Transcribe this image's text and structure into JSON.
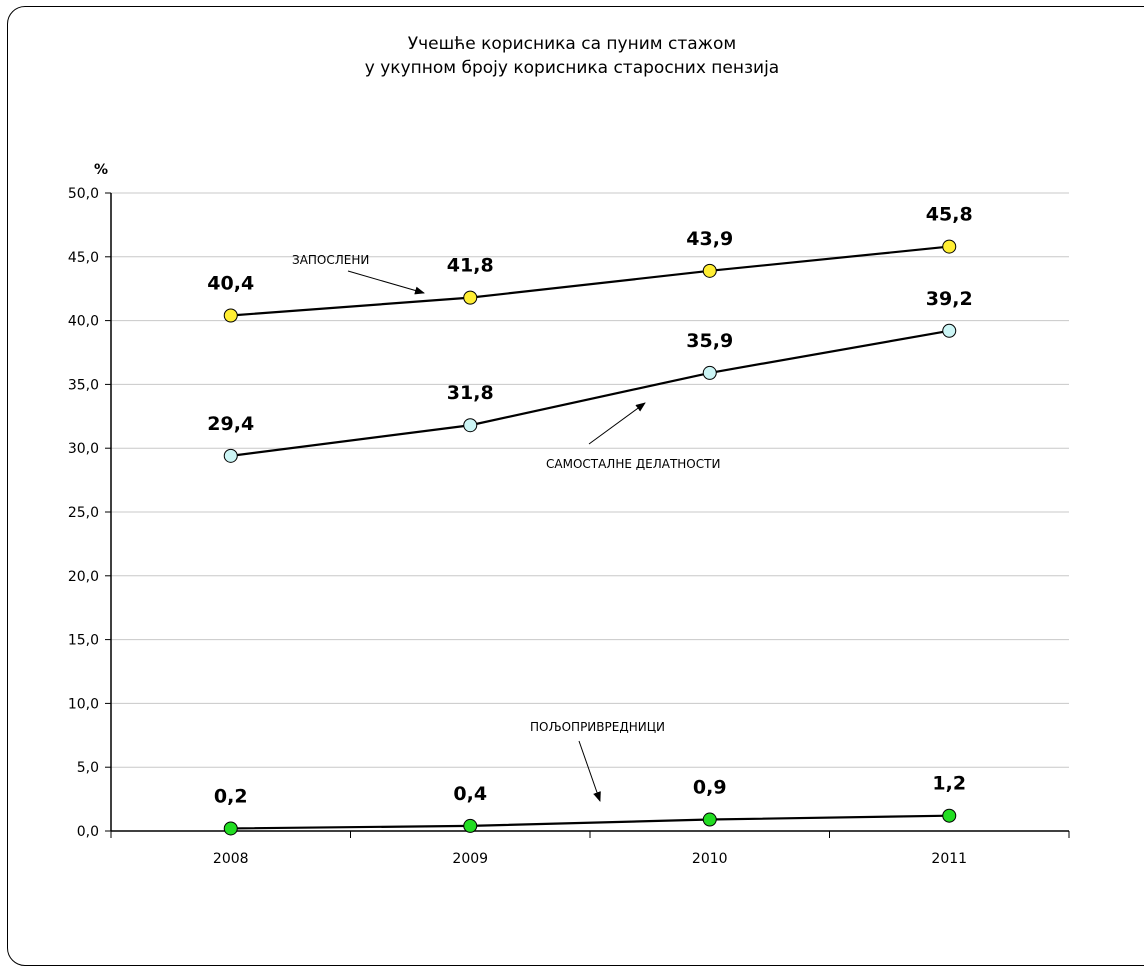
{
  "chart_data": {
    "type": "line",
    "title_line1": "Учешће корисника са пуним стажом",
    "title_line2": "у укупном броју корисника старосних пензија",
    "ylabel": "%",
    "xlabel": "",
    "categories": [
      "2008",
      "2009",
      "2010",
      "2011"
    ],
    "ylim": [
      0,
      50
    ],
    "yticks": [
      "0,0",
      "5,0",
      "10,0",
      "15,0",
      "20,0",
      "25,0",
      "30,0",
      "35,0",
      "40,0",
      "45,0",
      "50,0"
    ],
    "grid": true,
    "series": [
      {
        "name": "ЗАПОСЛЕНИ",
        "values": [
          40.4,
          41.8,
          43.9,
          45.8
        ],
        "labels": [
          "40,4",
          "41,8",
          "43,9",
          "45,8"
        ],
        "marker_color": "#ffee33"
      },
      {
        "name": "САМОСТАЛНЕ  ДЕЛАТНОСТИ",
        "values": [
          29.4,
          31.8,
          35.9,
          39.2
        ],
        "labels": [
          "29,4",
          "31,8",
          "35,9",
          "39,2"
        ],
        "marker_color": "#ccf5f5"
      },
      {
        "name": "ПОЉОПРИВРЕДНИЦИ",
        "values": [
          0.2,
          0.4,
          0.9,
          1.2
        ],
        "labels": [
          "0,2",
          "0,4",
          "0,9",
          "1,2"
        ],
        "marker_color": "#22dd22"
      }
    ]
  }
}
